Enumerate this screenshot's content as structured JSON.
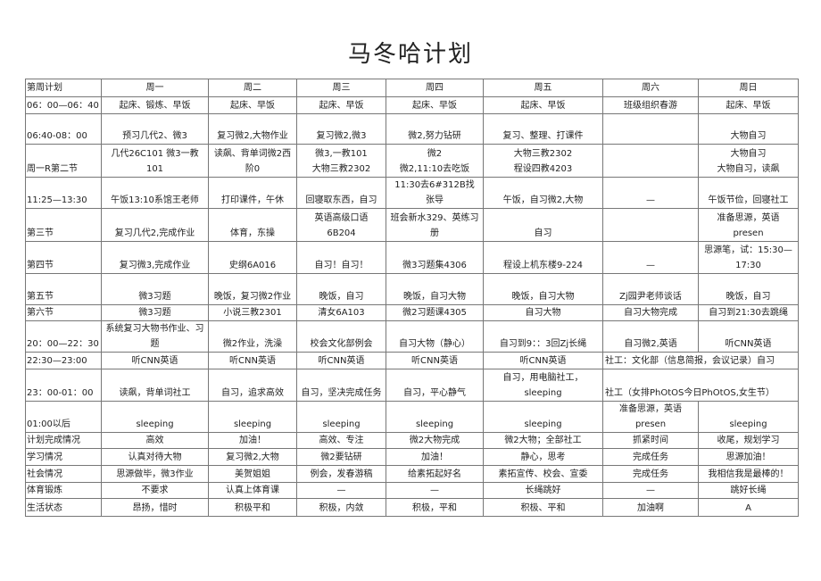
{
  "title": "马冬哈计划",
  "header": [
    "第周计划",
    "周一",
    "周二",
    "周三",
    "周四",
    "周五",
    "周六",
    "周日"
  ],
  "rows": [
    {
      "label": "06：00—06：40",
      "cells": [
        {
          "t": "起床、锻炼、早饭"
        },
        {
          "t": "起床、早饭"
        },
        {
          "t": "起床、早饭"
        },
        {
          "t": "起床、早饭"
        },
        {
          "t": "起床、早饭"
        },
        {
          "t": "班级组织春游"
        },
        {
          "t": "起床、早饭"
        }
      ]
    },
    {
      "label": "06:40-08：00",
      "cells": [
        {
          "t": "预习几代2、微3"
        },
        {
          "t": "复习微2,大物作业\n "
        },
        {
          "t": "复习微2,微3"
        },
        {
          "t": "微2,努力钻研"
        },
        {
          "t": "复习、整理、打课件"
        },
        {
          "t": ""
        },
        {
          "t": "大物自习"
        }
      ]
    },
    {
      "label": "周一R第二节",
      "cells": [
        {
          "t": "几代26C101 微3一教101"
        },
        {
          "t": "读飙、背单词微2西\n阶0"
        },
        {
          "t": "微3,一教101\n大物三教2302"
        },
        {
          "t": "微2\n微2,11:10去吃饭"
        },
        {
          "t": "大物三教2302\n程设四教4203"
        },
        {
          "t": ""
        },
        {
          "t": "大物自习\n大物自习，读飙"
        }
      ]
    },
    {
      "label": "11:25—13:30",
      "cells": [
        {
          "t": "午饭13:10系馆王老师"
        },
        {
          "t": "打印课件，午休"
        },
        {
          "t": "回寝取东西，自习"
        },
        {
          "t": "11:30去6#312B找\n张导"
        },
        {
          "t": "午饭，自习微2,大物"
        },
        {
          "t": "—"
        },
        {
          "t": "午饭节俭，回寝社工"
        }
      ]
    },
    {
      "label": "第三节",
      "cells": [
        {
          "t": "复习几代2,完成作业"
        },
        {
          "t": "体育，东操"
        },
        {
          "t": "英语高级口语\n6B204"
        },
        {
          "t": "班会新水329、英练习册\n "
        },
        {
          "t": "自习"
        },
        {
          "t": ""
        },
        {
          "t": "准备思源，英语\npresen"
        }
      ]
    },
    {
      "label": "第四节",
      "cells": [
        {
          "t": "复习微3,完成作业"
        },
        {
          "t": "史纲6A016"
        },
        {
          "t": "自习！自习！"
        },
        {
          "t": "微3习题集4306"
        },
        {
          "t": "程设上机东楼9-224"
        },
        {
          "t": "—"
        },
        {
          "t": "思源笔，试：15:30—\n17:30"
        }
      ]
    },
    {
      "label": "第五节",
      "cells": [
        {
          "t": "微3习题"
        },
        {
          "t": "晚饭，复习微2作业\n "
        },
        {
          "t": "晚饭，自习"
        },
        {
          "t": "晚饭，自习大物"
        },
        {
          "t": "晚饭，自习大物"
        },
        {
          "t": "Zj园尹老师谈话"
        },
        {
          "t": "晚饭，自习"
        }
      ]
    },
    {
      "label": "第六节",
      "cells": [
        {
          "t": "微3习题"
        },
        {
          "t": "小说三教2301"
        },
        {
          "t": "清女6A103"
        },
        {
          "t": "微2习题课4305"
        },
        {
          "t": "自习大物"
        },
        {
          "t": "自习大物完成"
        },
        {
          "t": "自习到21:30去跳绳"
        }
      ]
    },
    {
      "label": "20：00—22：30",
      "cells": [
        {
          "t": "系统复习大物书作业、习\n题"
        },
        {
          "t": "微2作业，洗澡"
        },
        {
          "t": "校会文化部例会"
        },
        {
          "t": "自习大物（静心）"
        },
        {
          "t": "自习到9：：3回Zj长绳"
        },
        {
          "t": "自习微2,英语"
        },
        {
          "t": "听CNN英语"
        }
      ]
    },
    {
      "label": "22:30—23:00",
      "cells": [
        {
          "t": "听CNN英语"
        },
        {
          "t": "听CNN英语"
        },
        {
          "t": "听CNN英语"
        },
        {
          "t": "听CNN英语"
        },
        {
          "t": "听CNN英语"
        },
        {
          "t": "社工：文化部（信息简报，会议记录）自习",
          "span": 2
        }
      ]
    },
    {
      "label": "23：00-01：00",
      "cells": [
        {
          "t": "读飙，背单词社工"
        },
        {
          "t": "自习，追求高效"
        },
        {
          "t": "自习，坚决完成任务"
        },
        {
          "t": "自习，平心静气"
        },
        {
          "t": "自习，用电脑社工，sleeping"
        },
        {
          "t": "社工（女排PhOtOS今日PhOtOS,女生节）",
          "span": 2
        }
      ]
    },
    {
      "label": "01:00以后",
      "cells": [
        {
          "t": "sleeping"
        },
        {
          "t": "sleeping"
        },
        {
          "t": "sleeping"
        },
        {
          "t": "sleeping"
        },
        {
          "t": "sleeping"
        },
        {
          "t": "准备思源，英语\npresen"
        },
        {
          "t": "sleeping"
        }
      ]
    },
    {
      "label": "计划完成情况",
      "cells": [
        {
          "t": "高效"
        },
        {
          "t": "加油！"
        },
        {
          "t": "高效、专注"
        },
        {
          "t": "微2大物完成"
        },
        {
          "t": "微2大物；全部社工"
        },
        {
          "t": "抓紧时间"
        },
        {
          "t": "收尾，规划学习"
        }
      ]
    },
    {
      "label": "学习情况",
      "cells": [
        {
          "t": "认真对待大物"
        },
        {
          "t": "复习微2,大物"
        },
        {
          "t": "微2要钻研"
        },
        {
          "t": "加油！"
        },
        {
          "t": "静心，思考"
        },
        {
          "t": "完成任务"
        },
        {
          "t": "思源加油！"
        }
      ]
    },
    {
      "label": "社会情况",
      "cells": [
        {
          "t": "思源做毕，微3作业"
        },
        {
          "t": "美贺姐姐"
        },
        {
          "t": "例会，发春游稿"
        },
        {
          "t": "给素拓起好名"
        },
        {
          "t": "素拓宣传、校会、宣委"
        },
        {
          "t": "完成任务"
        },
        {
          "t": "我相信我是最棒的！"
        }
      ]
    },
    {
      "label": "体育锻炼",
      "cells": [
        {
          "t": "不要求"
        },
        {
          "t": "认真上体育课"
        },
        {
          "t": "—"
        },
        {
          "t": "—"
        },
        {
          "t": "长绳跳好"
        },
        {
          "t": "—"
        },
        {
          "t": "跳好长绳"
        }
      ]
    },
    {
      "label": "生活状态",
      "cells": [
        {
          "t": "昂扬，惜时"
        },
        {
          "t": "积极平和"
        },
        {
          "t": "积极，内敛"
        },
        {
          "t": "积极，平和"
        },
        {
          "t": "积极、平和"
        },
        {
          "t": "加油啊"
        },
        {
          "t": "A"
        }
      ]
    }
  ]
}
